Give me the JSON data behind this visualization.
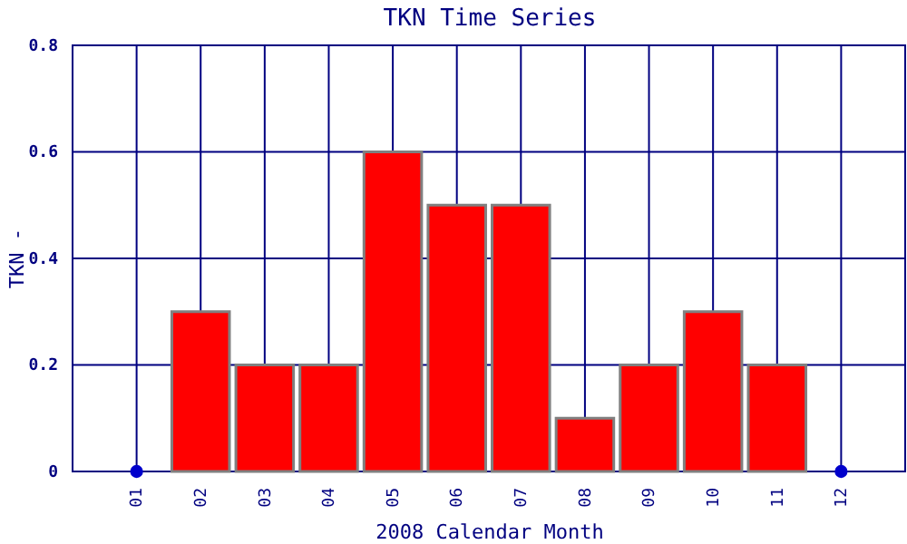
{
  "chart_data": {
    "type": "bar",
    "title": "TKN Time Series",
    "xlabel": "2008 Calendar Month",
    "ylabel": "TKN -",
    "categories": [
      "01",
      "02",
      "03",
      "04",
      "05",
      "06",
      "07",
      "08",
      "09",
      "10",
      "11",
      "12"
    ],
    "series": [
      {
        "color": "#ff0000",
        "values": [
          null,
          0.3,
          0.2,
          0.2,
          0.6,
          0.5,
          0.5,
          0.1,
          0.2,
          0.3,
          0.2,
          null
        ]
      },
      {
        "type": "scatter",
        "color": "#0000cc",
        "x": [
          "01",
          "12"
        ],
        "values": [
          0,
          0
        ]
      }
    ],
    "ylim": [
      0,
      0.8
    ],
    "yticks": [
      0,
      0.2,
      0.4,
      0.6,
      0.8
    ],
    "grid": true,
    "marker": "circle"
  }
}
